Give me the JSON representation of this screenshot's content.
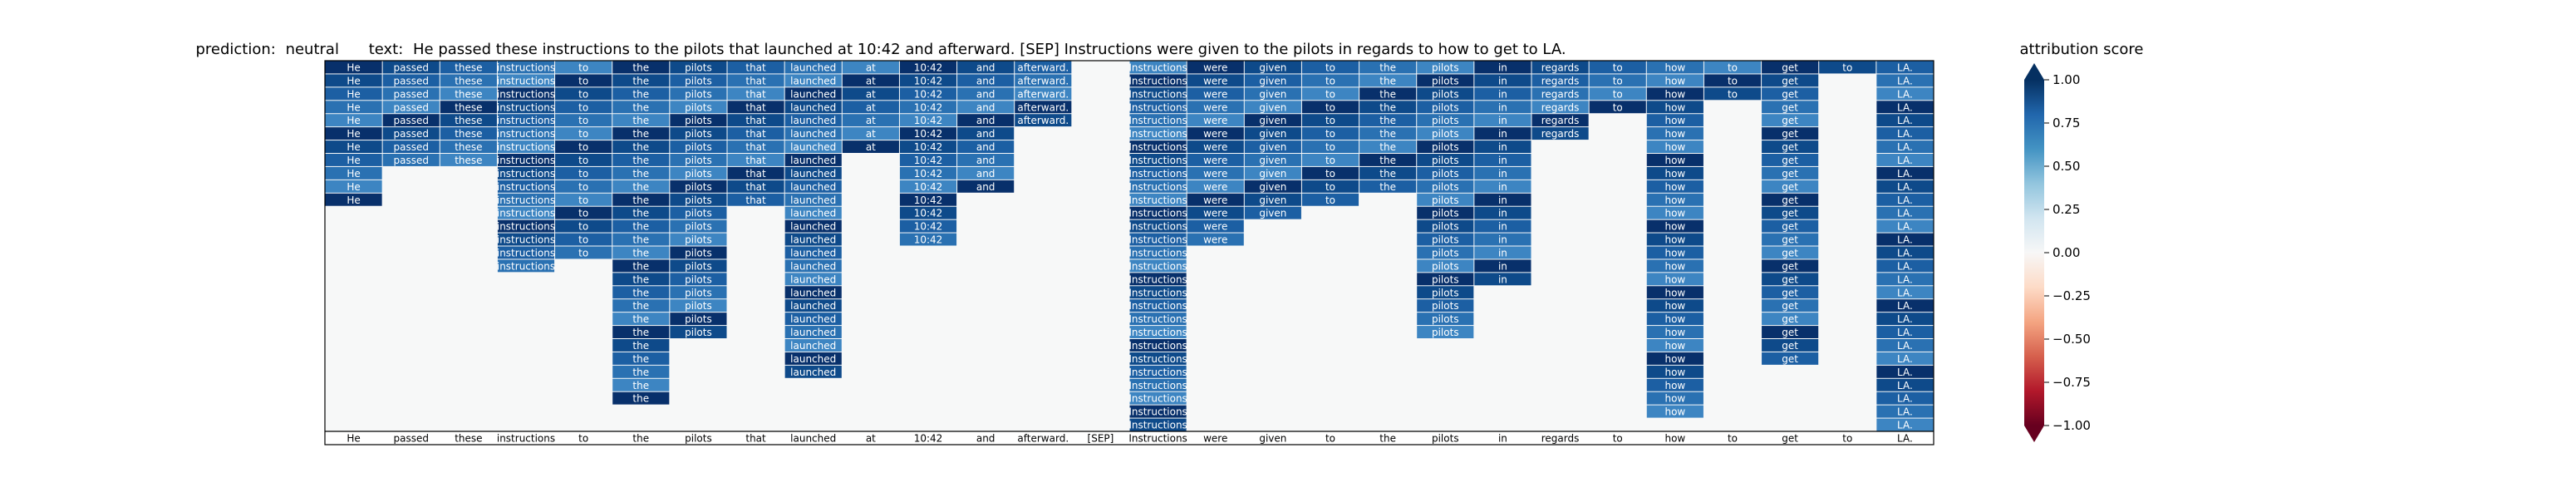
{
  "chart_data": {
    "type": "heatmap",
    "title": {
      "prediction_label": "prediction:",
      "prediction": "neutral",
      "text_label": "text:",
      "text": "He passed these instructions to the pilots that launched at 10:42 and afterward. [SEP] Instructions were given to the pilots in regards to how to get to LA."
    },
    "tokens": [
      "He",
      "passed",
      "these",
      "instructions",
      "to",
      "the",
      "pilots",
      "that",
      "launched",
      "at",
      "10:42",
      "and",
      "afterward.",
      "[SEP]",
      "Instructions",
      "were",
      "given",
      "to",
      "the",
      "pilots",
      "in",
      "regards",
      "to",
      "how",
      "to",
      "get",
      "to",
      "LA."
    ],
    "stack_heights": [
      11,
      8,
      8,
      16,
      15,
      26,
      21,
      11,
      24,
      7,
      14,
      10,
      5,
      0,
      28,
      14,
      12,
      11,
      10,
      21,
      17,
      6,
      4,
      27,
      3,
      23,
      1,
      28
    ],
    "rows": 28,
    "colorbar": {
      "label": "attribution score",
      "ticks": [
        1.0,
        0.75,
        0.5,
        0.25,
        0.0,
        -0.25,
        -0.5,
        -0.75,
        -1.0
      ],
      "tick_labels": [
        "1.00",
        "0.75",
        "0.50",
        "0.25",
        "0.00",
        "−0.25",
        "−0.50",
        "−0.75",
        "−1.00"
      ],
      "range": [
        -1,
        1
      ],
      "colormap": "RdBu"
    }
  }
}
